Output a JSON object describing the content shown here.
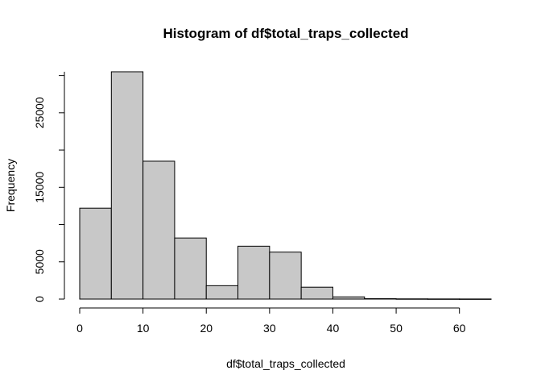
{
  "chart_data": {
    "type": "bar",
    "subtype": "histogram",
    "title": "Histogram of df$total_traps_collected",
    "xlabel": "df$total_traps_collected",
    "ylabel": "Frequency",
    "bin_edges": [
      0,
      5,
      10,
      15,
      20,
      25,
      30,
      35,
      40,
      45,
      50,
      55,
      60,
      65
    ],
    "values": [
      12200,
      30500,
      18500,
      8200,
      1800,
      7100,
      6300,
      1600,
      300,
      60,
      30,
      20,
      15
    ],
    "xlim": [
      0,
      65
    ],
    "ylim": [
      0,
      30500
    ],
    "x_ticks": [
      0,
      10,
      20,
      30,
      40,
      50,
      60
    ],
    "y_ticks": [
      0,
      5000,
      15000,
      25000
    ],
    "bar_fill": "#c8c8c8",
    "bar_stroke": "#000000",
    "grid": false
  }
}
